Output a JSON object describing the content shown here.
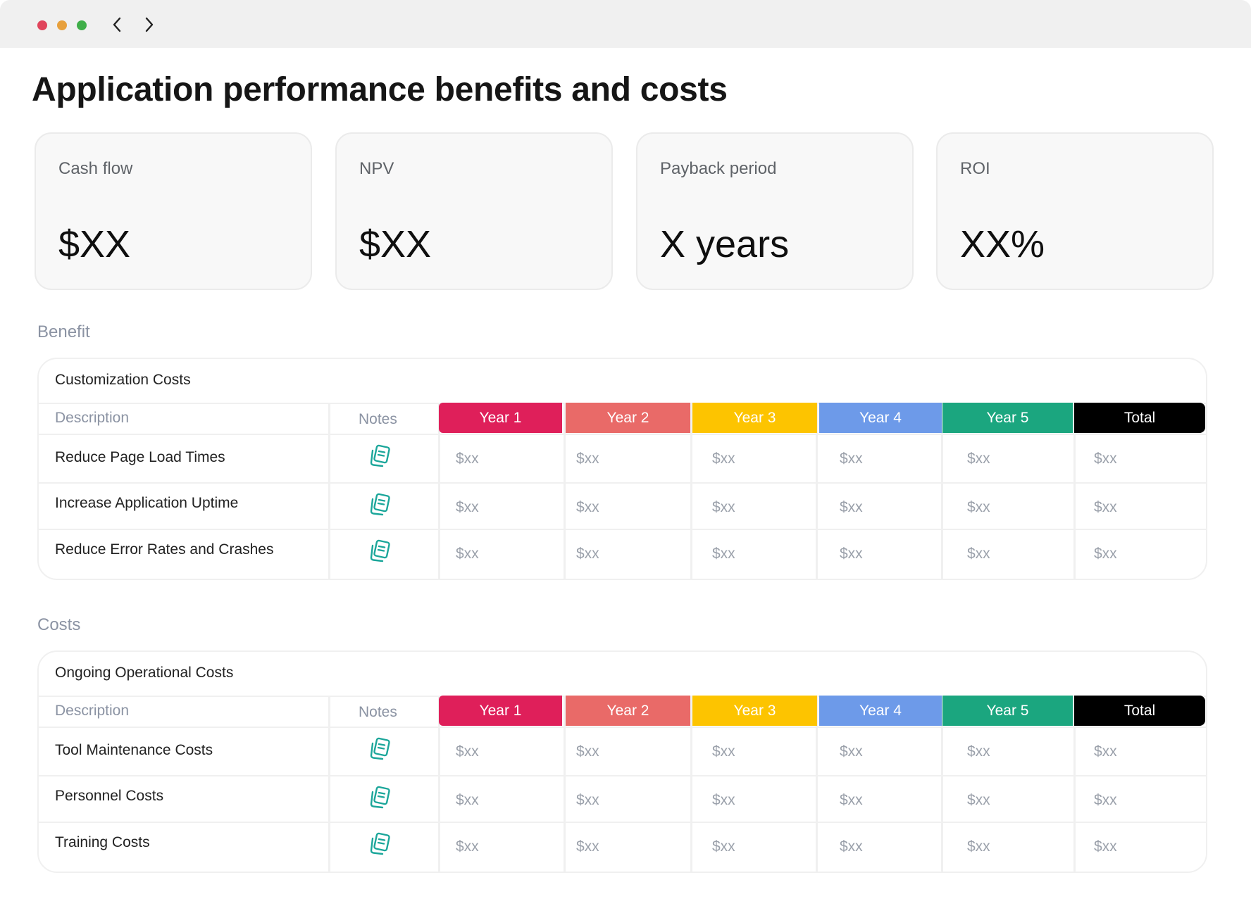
{
  "page": {
    "title": "Application performance benefits and costs"
  },
  "kpis": [
    {
      "label": "Cash flow",
      "value": "$XX"
    },
    {
      "label": "NPV",
      "value": "$XX"
    },
    {
      "label": "Payback period",
      "value": "X years"
    },
    {
      "label": "ROI",
      "value": "XX%"
    }
  ],
  "columns": {
    "description": "Description",
    "notes": "Notes",
    "years": [
      {
        "label": "Year 1",
        "color": "#df1f5a"
      },
      {
        "label": "Year 2",
        "color": "#e96a68"
      },
      {
        "label": "Year 3",
        "color": "#fdc400"
      },
      {
        "label": "Year 4",
        "color": "#6d9ae9"
      },
      {
        "label": "Year 5",
        "color": "#1ba67f"
      },
      {
        "label": "Total",
        "color": "#000000"
      }
    ]
  },
  "sections": [
    {
      "label": "Benefit",
      "table_title": "Customization Costs",
      "rows": [
        {
          "description": "Reduce Page Load Times",
          "values": [
            "$xx",
            "$xx",
            "$xx",
            "$xx",
            "$xx",
            "$xx"
          ]
        },
        {
          "description": "Increase Application Uptime",
          "values": [
            "$xx",
            "$xx",
            "$xx",
            "$xx",
            "$xx",
            "$xx"
          ]
        },
        {
          "description": "Reduce Error Rates and Crashes",
          "values": [
            "$xx",
            "$xx",
            "$xx",
            "$xx",
            "$xx",
            "$xx"
          ]
        }
      ]
    },
    {
      "label": "Costs",
      "table_title": "Ongoing Operational Costs",
      "rows": [
        {
          "description": "Tool Maintenance Costs",
          "values": [
            "$xx",
            "$xx",
            "$xx",
            "$xx",
            "$xx",
            "$xx"
          ]
        },
        {
          "description": "Personnel Costs",
          "values": [
            "$xx",
            "$xx",
            "$xx",
            "$xx",
            "$xx",
            "$xx"
          ]
        },
        {
          "description": "Training Costs",
          "values": [
            "$xx",
            "$xx",
            "$xx",
            "$xx",
            "$xx",
            "$xx"
          ]
        }
      ]
    }
  ],
  "icons": {
    "notes": "notes-icon",
    "back": "chevron-left-icon",
    "forward": "chevron-right-icon"
  },
  "accent": {
    "notes_icon": "#1ba69a"
  }
}
